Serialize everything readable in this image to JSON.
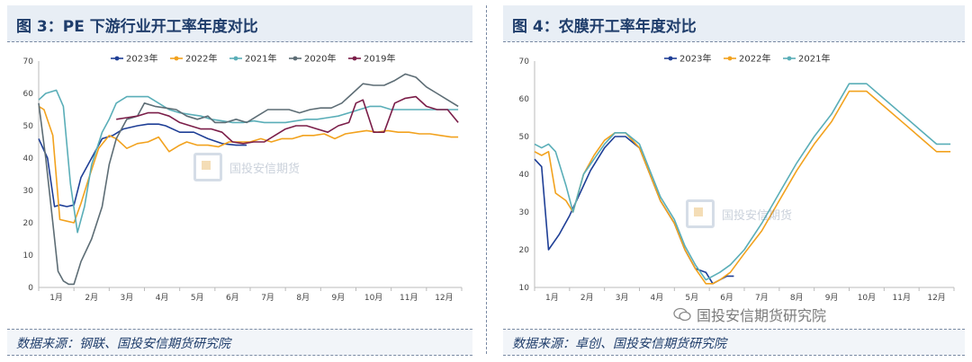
{
  "left_panel": {
    "title": "图 3：PE 下游行业开工率年度对比",
    "source": "数据来源：钢联、国投安信期货研究院"
  },
  "right_panel": {
    "title": "图 4：农膜开工率年度对比",
    "source": "数据来源：卓创、国投安信期货研究院"
  },
  "watermark_text": "国投安信期货",
  "footer_brand": "国投安信期货研究院",
  "icons": {
    "wechat": "wechat-icon",
    "logo": "company-logo-icon"
  },
  "chart_data": [
    {
      "type": "line",
      "ylim": [
        0,
        70
      ],
      "yticks": [
        0,
        10,
        20,
        30,
        40,
        50,
        60,
        70
      ],
      "xlim": [
        0,
        12
      ],
      "xtick_labels": [
        "1月",
        "2月",
        "3月",
        "4月",
        "5月",
        "6月",
        "7月",
        "8月",
        "9月",
        "10月",
        "11月",
        "12月"
      ],
      "grid": false,
      "legend_position": "top",
      "series": [
        {
          "name": "2023年",
          "color": "#1f3f96",
          "x": [
            0.0,
            0.25,
            0.45,
            0.6,
            0.8,
            1.0,
            1.2,
            1.5,
            1.8,
            2.1,
            2.4,
            2.8,
            3.1,
            3.4,
            3.6,
            4.0,
            4.4,
            4.8,
            5.2,
            5.6,
            5.9
          ],
          "y": [
            46,
            40,
            25,
            25.5,
            25,
            25.5,
            34,
            40,
            46,
            47,
            49,
            50,
            50.5,
            50.5,
            50,
            48,
            48,
            46,
            44.5,
            44,
            44
          ]
        },
        {
          "name": "2022年",
          "color": "#f2a21e",
          "x": [
            0.0,
            0.15,
            0.4,
            0.6,
            0.8,
            1.0,
            1.2,
            1.4,
            1.7,
            2.0,
            2.2,
            2.5,
            2.8,
            3.1,
            3.4,
            3.7,
            4.0,
            4.2,
            4.5,
            4.8,
            5.1,
            5.4,
            5.7,
            6.0,
            6.3,
            6.6,
            6.9,
            7.2,
            7.5,
            7.8,
            8.1,
            8.4,
            8.7,
            9.0,
            9.3,
            9.6,
            9.9,
            10.2,
            10.5,
            10.8,
            11.1,
            11.4,
            11.7,
            11.9
          ],
          "y": [
            56,
            55,
            47,
            21,
            20.5,
            20,
            26,
            33,
            43,
            47,
            46,
            43,
            44.5,
            45,
            46.5,
            42,
            44,
            45,
            44,
            44,
            43.5,
            45,
            45,
            45,
            46,
            45,
            46,
            46,
            47,
            47,
            47.5,
            46,
            47.5,
            48,
            48.5,
            48,
            48.5,
            48,
            48,
            47.5,
            47.5,
            47,
            46.5,
            46.5
          ]
        },
        {
          "name": "2021年",
          "color": "#5aaeb8",
          "x": [
            0.0,
            0.2,
            0.5,
            0.7,
            0.9,
            1.1,
            1.3,
            1.5,
            1.8,
            2.0,
            2.2,
            2.5,
            2.8,
            3.1,
            3.4,
            3.7,
            4.0,
            4.3,
            4.6,
            4.9,
            5.2,
            5.5,
            5.8,
            6.1,
            6.4,
            6.7,
            7.0,
            7.3,
            7.6,
            7.9,
            8.2,
            8.5,
            8.8,
            9.1,
            9.4,
            9.7,
            10.0,
            10.3,
            10.6,
            10.9,
            11.2,
            11.5,
            11.8,
            11.9
          ],
          "y": [
            58,
            60,
            61,
            56,
            32,
            17,
            25,
            38,
            48,
            52,
            57,
            59,
            59,
            59,
            57,
            55,
            54,
            53.5,
            53,
            52,
            51.5,
            51,
            51,
            51.5,
            51,
            51,
            51,
            51.5,
            52,
            52,
            52.5,
            53,
            54,
            55,
            56,
            56,
            55,
            55,
            55,
            55,
            55,
            55,
            55,
            55
          ]
        },
        {
          "name": "2020年",
          "color": "#5d6d75",
          "x": [
            0.0,
            0.2,
            0.4,
            0.55,
            0.7,
            0.85,
            1.0,
            1.2,
            1.5,
            1.8,
            2.0,
            2.2,
            2.5,
            2.8,
            3.0,
            3.3,
            3.6,
            3.9,
            4.2,
            4.5,
            4.8,
            5.0,
            5.3,
            5.6,
            5.9,
            6.2,
            6.5,
            6.8,
            7.1,
            7.4,
            7.7,
            8.0,
            8.3,
            8.6,
            8.9,
            9.2,
            9.5,
            9.8,
            10.1,
            10.4,
            10.7,
            11.0,
            11.3,
            11.6,
            11.9
          ],
          "y": [
            57,
            40,
            20,
            5,
            2,
            1,
            1,
            8,
            15,
            25,
            38,
            46,
            52,
            53,
            57,
            56,
            55.5,
            55,
            53,
            52,
            53,
            51,
            51,
            52,
            51,
            53,
            55,
            55,
            55,
            54,
            55,
            55.5,
            55.5,
            57,
            60,
            63,
            62.5,
            62.5,
            64,
            66,
            65,
            62,
            60,
            58,
            56
          ]
        },
        {
          "name": "2019年",
          "color": "#7b1e49",
          "x": [
            2.2,
            2.5,
            2.8,
            3.1,
            3.4,
            3.7,
            4.0,
            4.3,
            4.6,
            4.9,
            5.2,
            5.5,
            5.8,
            6.1,
            6.4,
            6.7,
            7.0,
            7.3,
            7.6,
            7.9,
            8.2,
            8.5,
            8.8,
            9.0,
            9.2,
            9.5,
            9.8,
            10.1,
            10.4,
            10.7,
            11.0,
            11.3,
            11.6,
            11.9
          ],
          "y": [
            52,
            52.5,
            53,
            54,
            54,
            53,
            51,
            50,
            49,
            49,
            48,
            45,
            44.5,
            45,
            45,
            47,
            49,
            50,
            50,
            49,
            48,
            50,
            51,
            57,
            58,
            48,
            48,
            57,
            58.5,
            59,
            56,
            55,
            55,
            51
          ]
        }
      ]
    },
    {
      "type": "line",
      "ylim": [
        10,
        70
      ],
      "yticks": [
        10,
        20,
        30,
        40,
        50,
        60,
        70
      ],
      "xlim": [
        0,
        12
      ],
      "xtick_labels": [
        "1月",
        "2月",
        "3月",
        "4月",
        "5月",
        "6月",
        "7月",
        "8月",
        "9月",
        "10月",
        "11月",
        "12月"
      ],
      "grid": false,
      "legend_position": "top",
      "series": [
        {
          "name": "2023年",
          "color": "#1f3f96",
          "x": [
            0.0,
            0.2,
            0.4,
            0.7,
            1.0,
            1.3,
            1.6,
            2.0,
            2.3,
            2.6,
            3.0,
            3.3,
            3.6,
            4.0,
            4.3,
            4.6,
            4.9,
            5.1,
            5.3,
            5.5,
            5.7
          ],
          "y": [
            44,
            42,
            20,
            24,
            29,
            35,
            41,
            47,
            50,
            50,
            47,
            40,
            33,
            27,
            20,
            15,
            14,
            11,
            12,
            13,
            13
          ]
        },
        {
          "name": "2022年",
          "color": "#f2a21e",
          "x": [
            0.0,
            0.2,
            0.4,
            0.6,
            0.9,
            1.1,
            1.4,
            1.7,
            2.0,
            2.3,
            2.6,
            3.0,
            3.3,
            3.6,
            4.0,
            4.3,
            4.6,
            4.9,
            5.1,
            5.3,
            5.6,
            6.0,
            6.5,
            7.0,
            7.5,
            8.0,
            8.5,
            9.0,
            9.5,
            10.0,
            10.5,
            11.0,
            11.5,
            11.9
          ],
          "y": [
            46,
            45,
            46,
            35,
            33,
            30,
            40,
            45,
            49,
            51,
            51,
            47,
            40,
            33,
            27,
            20,
            15,
            11,
            11,
            12,
            14,
            19,
            25,
            33,
            41,
            48,
            54,
            62,
            62,
            58,
            54,
            50,
            46,
            46
          ]
        },
        {
          "name": "2021年",
          "color": "#5aaeb8",
          "x": [
            0.0,
            0.2,
            0.4,
            0.6,
            0.9,
            1.1,
            1.4,
            1.7,
            2.0,
            2.3,
            2.6,
            3.0,
            3.3,
            3.6,
            4.0,
            4.3,
            4.6,
            4.9,
            5.1,
            5.3,
            5.6,
            6.0,
            6.5,
            7.0,
            7.5,
            8.0,
            8.5,
            9.0,
            9.5,
            10.0,
            10.5,
            11.0,
            11.5,
            11.9
          ],
          "y": [
            48,
            47,
            48,
            46,
            37,
            30,
            40,
            44,
            48,
            51,
            51,
            48,
            41,
            34,
            28,
            21,
            16,
            12,
            13,
            14,
            16,
            20,
            27,
            35,
            43,
            50,
            56,
            64,
            64,
            60,
            56,
            52,
            48,
            48
          ]
        }
      ]
    }
  ]
}
